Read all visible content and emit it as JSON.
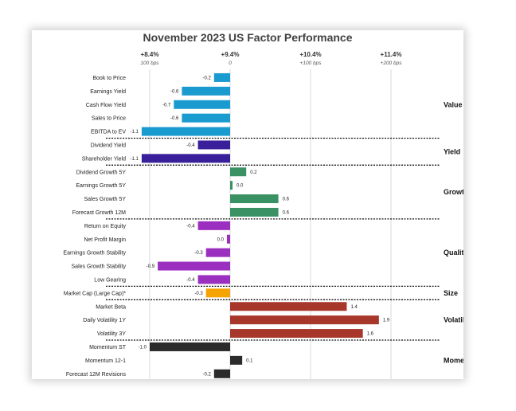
{
  "chart_data": {
    "type": "bar",
    "orientation": "horizontal",
    "title": "November 2023 US Factor Performance",
    "x_ticks": [
      {
        "value": -1,
        "label": "+8.4%",
        "sublabel": "100 bps"
      },
      {
        "value": 0,
        "label": "+9.4%",
        "sublabel": "0"
      },
      {
        "value": 1,
        "label": "+10.4%",
        "sublabel": "+100 bps"
      },
      {
        "value": 2,
        "label": "+11.4%",
        "sublabel": "+200 bps"
      }
    ],
    "xlim": [
      -1.5,
      2.2
    ],
    "grid": true,
    "groups": [
      {
        "name": "Value",
        "color": "#1a9bd0",
        "items": [
          {
            "label": "Book to Price",
            "value": -0.2,
            "value_label": "-0.2"
          },
          {
            "label": "Earnings Yield",
            "value": -0.6,
            "value_label": "-0.6"
          },
          {
            "label": "Cash Flow Yield",
            "value": -0.7,
            "value_label": "-0.7"
          },
          {
            "label": "Sales to Price",
            "value": -0.6,
            "value_label": "-0.6"
          },
          {
            "label": "EBITDA to EV",
            "value": -1.1,
            "value_label": "-1.1"
          }
        ]
      },
      {
        "name": "Yield",
        "color": "#3a1f9a",
        "items": [
          {
            "label": "Dividend Yield",
            "value": -0.4,
            "value_label": "-0.4"
          },
          {
            "label": "Shareholder Yield",
            "value": -1.1,
            "value_label": "-1.1"
          }
        ]
      },
      {
        "name": "Growth",
        "color": "#3a9163",
        "items": [
          {
            "label": "Dividend Growth 5Y",
            "value": 0.2,
            "value_label": "0.2"
          },
          {
            "label": "Earnings Growth 5Y",
            "value": 0.03,
            "value_label": "0.0"
          },
          {
            "label": "Sales Growth 5Y",
            "value": 0.6,
            "value_label": "0.6"
          },
          {
            "label": "Forecast Growth 12M",
            "value": 0.6,
            "value_label": "0.6"
          }
        ]
      },
      {
        "name": "Quality",
        "color": "#9b2fc0",
        "items": [
          {
            "label": "Return on Equity",
            "value": -0.4,
            "value_label": "-0.4"
          },
          {
            "label": "Net Profit Margin",
            "value": -0.04,
            "value_label": "0.0"
          },
          {
            "label": "Earnings Growth Stability",
            "value": -0.3,
            "value_label": "-0.3"
          },
          {
            "label": "Sales Growth Stability",
            "value": -0.9,
            "value_label": "-0.9"
          },
          {
            "label": "Low Gearing",
            "value": -0.4,
            "value_label": "-0.4"
          }
        ]
      },
      {
        "name": "Size",
        "color": "#f5a300",
        "items": [
          {
            "label": "Market Cap (Large Cap)*",
            "value": -0.3,
            "value_label": "-0.3"
          }
        ]
      },
      {
        "name": "Volatility",
        "color": "#a8372b",
        "items": [
          {
            "label": "Market Beta",
            "value": 1.45,
            "value_label": "1.4"
          },
          {
            "label": "Daily Volatility 1Y",
            "value": 1.85,
            "value_label": "1.9"
          },
          {
            "label": "Volatility 3Y",
            "value": 1.65,
            "value_label": "1.6"
          }
        ]
      },
      {
        "name": "Momentum",
        "color": "#2b2b2b",
        "items": [
          {
            "label": "Momentum ST",
            "value": -1.0,
            "value_label": "-1.0"
          },
          {
            "label": "Momentum 12-1",
            "value": 0.15,
            "value_label": "0.1"
          },
          {
            "label": "Forecast 12M Revisions",
            "value": -0.2,
            "value_label": "-0.2"
          }
        ]
      }
    ]
  }
}
